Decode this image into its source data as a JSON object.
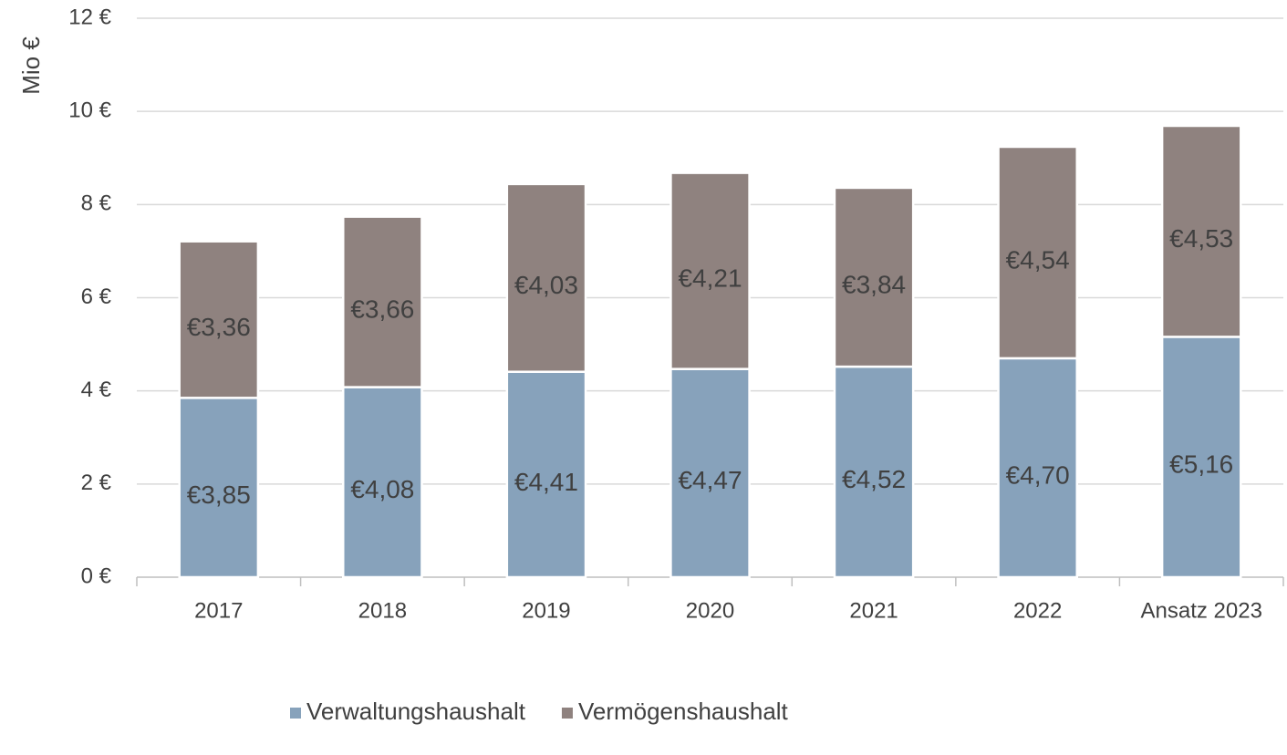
{
  "chart_data": {
    "type": "stacked_bar",
    "y_label": "Mio €",
    "categories": [
      "2017",
      "2018",
      "2019",
      "2020",
      "2021",
      "2022",
      "Ansatz 2023"
    ],
    "series": [
      {
        "name": "Verwaltungshaushalt",
        "color": "#87a2bb",
        "values": [
          3.85,
          4.08,
          4.41,
          4.47,
          4.52,
          4.7,
          5.16
        ],
        "value_labels": [
          "€3,85",
          "€4,08",
          "€4,41",
          "€4,47",
          "€4,52",
          "€4,70",
          "€5,16"
        ]
      },
      {
        "name": "Vermögenshaushalt",
        "color": "#8f827f",
        "values": [
          3.36,
          3.66,
          4.03,
          4.21,
          3.84,
          4.54,
          4.53
        ],
        "value_labels": [
          "€3,36",
          "€3,66",
          "€4,03",
          "€4,21",
          "€3,84",
          "€4,54",
          "€4,53"
        ]
      }
    ],
    "ylim": [
      0,
      12
    ],
    "yticks": [
      {
        "value": 0,
        "label": "0 €"
      },
      {
        "value": 2,
        "label": "2 €"
      },
      {
        "value": 4,
        "label": "4 €"
      },
      {
        "value": 6,
        "label": "6 €"
      },
      {
        "value": 8,
        "label": "8 €"
      },
      {
        "value": 10,
        "label": "10 €"
      },
      {
        "value": 12,
        "label": "12 €"
      }
    ],
    "grid": true,
    "legend": "bottom"
  }
}
